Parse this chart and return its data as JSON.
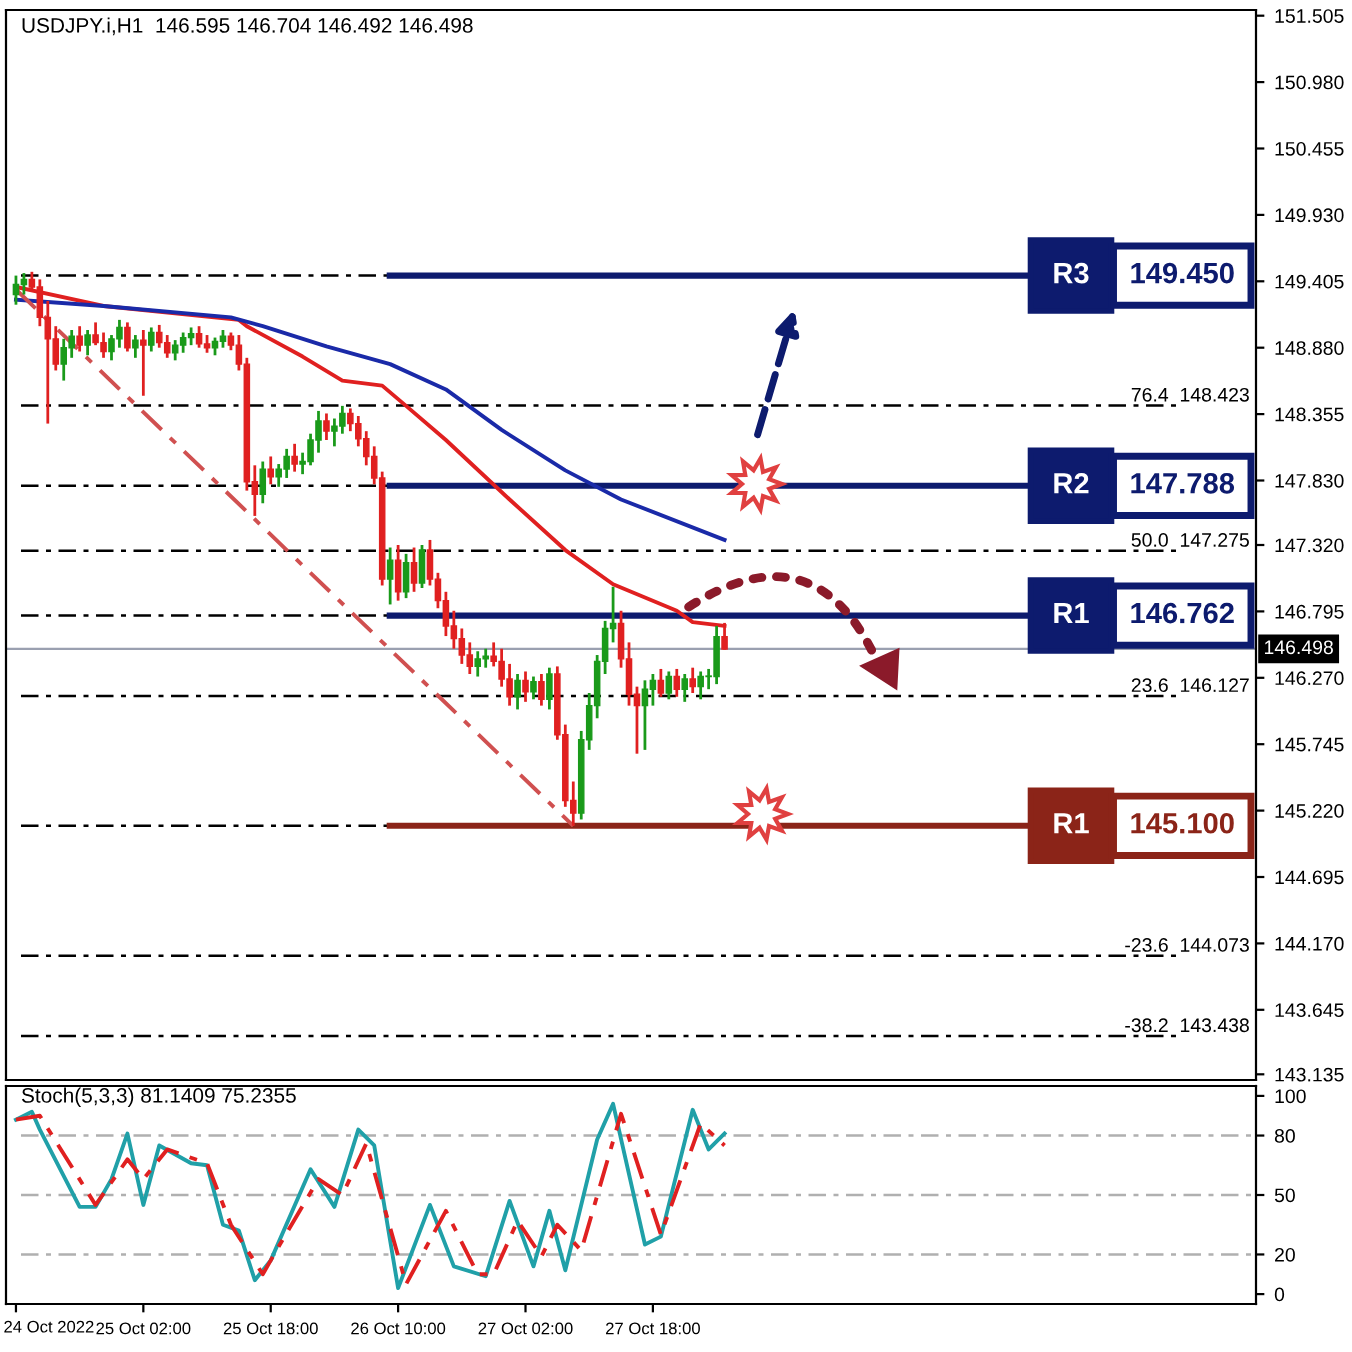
{
  "chart_data": [
    {
      "type": "candlestick",
      "title": "USDJPY.i,H1  146.595 146.704 146.492 146.498",
      "x": [
        "2022-10-24T10:00",
        "2022-10-24T11:00",
        "2022-10-24T12:00",
        "2022-10-24T13:00",
        "2022-10-24T14:00",
        "2022-10-24T15:00",
        "2022-10-24T16:00",
        "2022-10-24T17:00",
        "2022-10-24T18:00",
        "2022-10-24T19:00",
        "2022-10-24T20:00",
        "2022-10-24T21:00",
        "2022-10-24T22:00",
        "2022-10-24T23:00",
        "2022-10-25T00:00",
        "2022-10-25T01:00",
        "2022-10-25T02:00",
        "2022-10-25T03:00",
        "2022-10-25T04:00",
        "2022-10-25T05:00",
        "2022-10-25T06:00",
        "2022-10-25T07:00",
        "2022-10-25T08:00",
        "2022-10-25T09:00",
        "2022-10-25T10:00",
        "2022-10-25T11:00",
        "2022-10-25T12:00",
        "2022-10-25T13:00",
        "2022-10-25T14:00",
        "2022-10-25T15:00",
        "2022-10-25T16:00",
        "2022-10-25T17:00",
        "2022-10-25T18:00",
        "2022-10-25T19:00",
        "2022-10-25T20:00",
        "2022-10-25T21:00",
        "2022-10-25T22:00",
        "2022-10-25T23:00",
        "2022-10-26T00:00",
        "2022-10-26T01:00",
        "2022-10-26T02:00",
        "2022-10-26T03:00",
        "2022-10-26T04:00",
        "2022-10-26T05:00",
        "2022-10-26T06:00",
        "2022-10-26T07:00",
        "2022-10-26T08:00",
        "2022-10-26T09:00",
        "2022-10-26T10:00",
        "2022-10-26T11:00",
        "2022-10-26T12:00",
        "2022-10-26T13:00",
        "2022-10-26T14:00",
        "2022-10-26T15:00",
        "2022-10-26T16:00",
        "2022-10-26T17:00",
        "2022-10-26T18:00",
        "2022-10-26T19:00",
        "2022-10-26T20:00",
        "2022-10-26T21:00",
        "2022-10-26T22:00",
        "2022-10-26T23:00",
        "2022-10-27T00:00",
        "2022-10-27T01:00",
        "2022-10-27T02:00",
        "2022-10-27T03:00",
        "2022-10-27T04:00",
        "2022-10-27T05:00",
        "2022-10-27T06:00",
        "2022-10-27T07:00",
        "2022-10-27T08:00",
        "2022-10-27T09:00",
        "2022-10-27T10:00",
        "2022-10-27T11:00",
        "2022-10-27T12:00",
        "2022-10-27T13:00",
        "2022-10-27T14:00",
        "2022-10-27T15:00",
        "2022-10-27T16:00",
        "2022-10-27T17:00",
        "2022-10-27T18:00",
        "2022-10-27T19:00",
        "2022-10-27T20:00",
        "2022-10-27T21:00",
        "2022-10-27T22:00",
        "2022-10-27T23:00",
        "2022-10-28T00:00",
        "2022-10-28T01:00",
        "2022-10-28T02:00",
        "2022-10-28T03:00"
      ],
      "ohlc": [
        [
          149.3,
          149.45,
          149.22,
          149.38
        ],
        [
          149.38,
          149.47,
          149.3,
          149.42
        ],
        [
          149.42,
          149.48,
          149.33,
          149.36
        ],
        [
          149.36,
          149.42,
          149.05,
          149.12
        ],
        [
          149.12,
          149.25,
          148.28,
          148.95
        ],
        [
          148.95,
          149.05,
          148.7,
          148.75
        ],
        [
          148.75,
          148.95,
          148.62,
          148.88
        ],
        [
          148.88,
          149.02,
          148.8,
          148.97
        ],
        [
          148.97,
          149.05,
          148.85,
          148.9
        ],
        [
          148.9,
          149.02,
          148.82,
          148.98
        ],
        [
          148.98,
          149.08,
          148.9,
          148.92
        ],
        [
          148.92,
          149.0,
          148.8,
          148.85
        ],
        [
          148.85,
          148.98,
          148.78,
          148.95
        ],
        [
          148.95,
          149.1,
          148.88,
          149.04
        ],
        [
          149.04,
          149.08,
          148.85,
          148.88
        ],
        [
          148.88,
          148.98,
          148.8,
          148.94
        ],
        [
          148.94,
          149.02,
          148.5,
          148.9
        ],
        [
          148.9,
          149.04,
          148.85,
          149.0
        ],
        [
          149.0,
          149.06,
          148.88,
          148.92
        ],
        [
          148.92,
          148.98,
          148.8,
          148.84
        ],
        [
          148.84,
          148.94,
          148.78,
          148.9
        ],
        [
          148.9,
          149.0,
          148.84,
          148.96
        ],
        [
          148.96,
          149.04,
          148.9,
          148.99
        ],
        [
          148.99,
          149.05,
          148.88,
          148.91
        ],
        [
          148.91,
          148.98,
          148.84,
          148.88
        ],
        [
          148.88,
          148.96,
          148.82,
          148.93
        ],
        [
          148.93,
          149.02,
          148.88,
          148.97
        ],
        [
          148.97,
          149.0,
          148.86,
          148.9
        ],
        [
          148.9,
          148.98,
          148.7,
          148.75
        ],
        [
          148.75,
          148.8,
          147.75,
          147.82
        ],
        [
          147.82,
          147.95,
          147.55,
          147.72
        ],
        [
          147.72,
          147.98,
          147.65,
          147.92
        ],
        [
          147.92,
          148.02,
          147.8,
          147.86
        ],
        [
          147.86,
          147.96,
          147.78,
          147.92
        ],
        [
          147.92,
          148.08,
          147.85,
          148.02
        ],
        [
          148.02,
          148.12,
          147.9,
          147.96
        ],
        [
          147.96,
          148.05,
          147.88,
          147.98
        ],
        [
          147.98,
          148.2,
          147.95,
          148.15
        ],
        [
          148.15,
          148.38,
          148.05,
          148.3
        ],
        [
          148.3,
          148.36,
          148.15,
          148.22
        ],
        [
          148.22,
          148.32,
          148.1,
          148.26
        ],
        [
          148.26,
          148.42,
          148.2,
          148.36
        ],
        [
          148.36,
          148.4,
          148.22,
          148.28
        ],
        [
          148.28,
          148.34,
          148.1,
          148.16
        ],
        [
          148.16,
          148.22,
          147.95,
          148.02
        ],
        [
          148.02,
          148.1,
          147.8,
          147.85
        ],
        [
          147.85,
          147.9,
          147.0,
          147.05
        ],
        [
          147.05,
          147.3,
          146.85,
          147.2
        ],
        [
          147.2,
          147.32,
          146.88,
          146.95
        ],
        [
          146.95,
          147.25,
          146.9,
          147.18
        ],
        [
          147.18,
          147.3,
          146.95,
          147.02
        ],
        [
          147.02,
          147.32,
          146.98,
          147.28
        ],
        [
          147.28,
          147.36,
          147.0,
          147.05
        ],
        [
          147.05,
          147.1,
          146.82,
          146.88
        ],
        [
          146.88,
          146.95,
          146.6,
          146.68
        ],
        [
          146.68,
          146.8,
          146.5,
          146.58
        ],
        [
          146.58,
          146.66,
          146.38,
          146.45
        ],
        [
          146.45,
          146.55,
          146.3,
          146.36
        ],
        [
          146.36,
          146.48,
          146.28,
          146.42
        ],
        [
          146.42,
          146.5,
          146.35,
          146.44
        ],
        [
          146.44,
          146.55,
          146.36,
          146.4
        ],
        [
          146.4,
          146.5,
          146.2,
          146.26
        ],
        [
          146.26,
          146.38,
          146.05,
          146.12
        ],
        [
          146.12,
          146.3,
          146.02,
          146.25
        ],
        [
          146.25,
          146.32,
          146.08,
          146.16
        ],
        [
          146.16,
          146.28,
          146.1,
          146.24
        ],
        [
          146.24,
          146.3,
          146.05,
          146.1
        ],
        [
          146.1,
          146.35,
          146.02,
          146.3
        ],
        [
          146.3,
          146.36,
          145.78,
          145.82
        ],
        [
          145.82,
          145.9,
          145.25,
          145.3
        ],
        [
          145.3,
          145.45,
          145.1,
          145.2
        ],
        [
          145.2,
          145.85,
          145.15,
          145.78
        ],
        [
          145.78,
          146.15,
          145.7,
          146.05
        ],
        [
          146.05,
          146.45,
          145.95,
          146.4
        ],
        [
          146.4,
          146.72,
          146.3,
          146.66
        ],
        [
          146.66,
          146.99,
          146.55,
          146.7
        ],
        [
          146.7,
          146.8,
          146.35,
          146.42
        ],
        [
          146.42,
          146.55,
          146.05,
          146.14
        ],
        [
          146.14,
          146.2,
          145.67,
          146.05
        ],
        [
          146.05,
          146.25,
          145.7,
          146.18
        ],
        [
          146.18,
          146.3,
          146.05,
          146.25
        ],
        [
          146.25,
          146.34,
          146.12,
          146.15
        ],
        [
          146.15,
          146.32,
          146.1,
          146.28
        ],
        [
          146.28,
          146.34,
          146.12,
          146.18
        ],
        [
          146.18,
          146.3,
          146.08,
          146.26
        ],
        [
          146.26,
          146.35,
          146.15,
          146.2
        ],
        [
          146.2,
          146.32,
          146.1,
          146.28
        ],
        [
          146.28,
          146.34,
          146.18,
          146.28
        ],
        [
          146.28,
          146.68,
          146.22,
          146.595
        ],
        [
          146.595,
          146.704,
          146.492,
          146.498
        ]
      ],
      "series": [
        {
          "type": "line",
          "color": "#e02020",
          "x": [
            "2022-10-24T10:00",
            "2022-10-24T21:00",
            "2022-10-25T14:00",
            "2022-10-25T15:00",
            "2022-10-25T22:00",
            "2022-10-26T03:00",
            "2022-10-26T08:00",
            "2022-10-26T11:00",
            "2022-10-26T16:00",
            "2022-10-27T00:00",
            "2022-10-27T07:00",
            "2022-10-27T13:00",
            "2022-10-27T21:00",
            "2022-10-27T23:00",
            "2022-10-28T03:00"
          ],
          "values": [
            149.36,
            149.21,
            149.1,
            149.05,
            148.81,
            148.62,
            148.58,
            148.42,
            148.15,
            147.68,
            147.28,
            147.01,
            146.8,
            146.71,
            146.68
          ]
        },
        {
          "type": "line",
          "color": "#1a2aa8",
          "x": [
            "2022-10-24T10:00",
            "2022-10-24T21:00",
            "2022-10-25T13:00",
            "2022-10-25T17:00",
            "2022-10-26T01:00",
            "2022-10-26T09:00",
            "2022-10-26T16:00",
            "2022-10-26T23:00",
            "2022-10-27T07:00",
            "2022-10-27T14:00",
            "2022-10-28T03:00"
          ],
          "values": [
            149.26,
            149.21,
            149.12,
            149.05,
            148.89,
            148.75,
            148.55,
            148.23,
            147.91,
            147.68,
            147.36
          ]
        },
        {
          "type": "line",
          "color": "#d05050",
          "line_style": "dashed",
          "x": [
            "2022-10-24T10:00",
            "2022-10-27T08:00"
          ],
          "values": [
            149.34,
            145.1
          ]
        }
      ],
      "xlim": [
        "2022-10-24T08:45",
        "2022-10-30T21:45"
      ],
      "ylim": [
        143.09,
        151.55
      ],
      "yticks": [
        {
          "value": 151.505,
          "label": "151.505"
        },
        {
          "value": 150.98,
          "label": "150.980"
        },
        {
          "value": 150.455,
          "label": "150.455"
        },
        {
          "value": 149.93,
          "label": "149.930"
        },
        {
          "value": 149.405,
          "label": "149.405"
        },
        {
          "value": 148.88,
          "label": "148.880"
        },
        {
          "value": 148.355,
          "label": "148.355"
        },
        {
          "value": 147.83,
          "label": "147.830"
        },
        {
          "value": 147.32,
          "label": "147.320"
        },
        {
          "value": 146.795,
          "label": "146.795"
        },
        {
          "value": 146.27,
          "label": "146.270"
        },
        {
          "value": 145.745,
          "label": "145.745"
        },
        {
          "value": 145.22,
          "label": "145.220"
        },
        {
          "value": 144.695,
          "label": "144.695"
        },
        {
          "value": 144.17,
          "label": "144.170"
        },
        {
          "value": 143.645,
          "label": "143.645"
        },
        {
          "value": 143.135,
          "label": "143.135"
        }
      ],
      "ref_lines": [
        {
          "axis": "y",
          "value": 149.45,
          "label": null,
          "color": "#000000",
          "line_style": "dashed"
        },
        {
          "axis": "y",
          "value": 147.788,
          "label": null,
          "color": "#000000",
          "line_style": "dashed"
        },
        {
          "axis": "y",
          "value": 146.762,
          "label": null,
          "color": "#000000",
          "line_style": "dashed"
        },
        {
          "axis": "y",
          "value": 145.1,
          "label": null,
          "color": "#000000",
          "line_style": "dashed"
        },
        {
          "axis": "y",
          "value": 148.423,
          "label": "76.4  148.423",
          "color": "#000000",
          "line_style": "dashed"
        },
        {
          "axis": "y",
          "value": 147.275,
          "label": "50.0  147.275",
          "color": "#000000",
          "line_style": "dashed"
        },
        {
          "axis": "y",
          "value": 146.127,
          "label": "23.6  146.127",
          "color": "#000000",
          "line_style": "dashed"
        },
        {
          "axis": "y",
          "value": 144.073,
          "label": "-23.6  144.073",
          "color": "#000000",
          "line_style": "dashed"
        },
        {
          "axis": "y",
          "value": 143.438,
          "label": "-38.2  143.438",
          "color": "#000000",
          "line_style": "dashed"
        },
        {
          "axis": "y",
          "value": 146.498,
          "label": "146.498",
          "color": "#9aa0b0",
          "line_style": "solid"
        },
        {
          "axis": "y",
          "value": 149.45,
          "label": "R3  149.450",
          "color": "#0d1b6e",
          "line_style": "solid"
        },
        {
          "axis": "y",
          "value": 147.788,
          "label": "R2  147.788",
          "color": "#0d1b6e",
          "line_style": "solid"
        },
        {
          "axis": "y",
          "value": 146.762,
          "label": "R1  146.762",
          "color": "#0d1b6e",
          "line_style": "solid"
        },
        {
          "axis": "y",
          "value": 145.1,
          "label": "R1  145.100",
          "color": "#8b2418",
          "line_style": "solid"
        }
      ],
      "tick_labels": "y"
    },
    {
      "type": "line",
      "title": "Stoch(5,3,3) 81.1409 75.2355",
      "series": [
        {
          "color": "#20a0a8",
          "x": [
            "2022-10-24T10:00",
            "2022-10-24T12:00",
            "2022-10-24T13:00",
            "2022-10-24T18:00",
            "2022-10-24T20:00",
            "2022-10-24T22:00",
            "2022-10-25T00:00",
            "2022-10-25T02:00",
            "2022-10-25T04:00",
            "2022-10-25T08:00",
            "2022-10-25T10:00",
            "2022-10-25T12:00",
            "2022-10-25T14:00",
            "2022-10-25T16:00",
            "2022-10-25T18:00",
            "2022-10-25T23:00",
            "2022-10-26T02:00",
            "2022-10-26T05:00",
            "2022-10-26T07:00",
            "2022-10-26T10:00",
            "2022-10-26T14:00",
            "2022-10-26T17:00",
            "2022-10-26T21:00",
            "2022-10-27T00:00",
            "2022-10-27T03:00",
            "2022-10-27T05:00",
            "2022-10-27T07:00",
            "2022-10-27T11:00",
            "2022-10-27T13:00",
            "2022-10-27T17:00",
            "2022-10-27T19:00",
            "2022-10-27T23:00",
            "2022-10-28T01:00",
            "2022-10-28T03:00"
          ],
          "values": [
            88,
            92,
            83,
            44,
            44,
            58,
            81,
            45,
            75,
            66,
            65,
            35,
            32,
            7,
            17,
            63,
            44,
            83,
            75,
            3,
            45,
            14,
            9,
            47,
            14,
            42,
            12,
            78,
            96,
            25,
            29,
            93,
            73,
            81
          ]
        },
        {
          "color": "#e02020",
          "line_style": "dashed",
          "x": [
            "2022-10-24T10:00",
            "2022-10-24T13:00",
            "2022-10-24T20:00",
            "2022-10-25T00:00",
            "2022-10-25T02:00",
            "2022-10-25T05:00",
            "2022-10-25T10:00",
            "2022-10-25T13:00",
            "2022-10-25T17:00",
            "2022-10-25T19:00",
            "2022-10-26T00:00",
            "2022-10-26T03:00",
            "2022-10-26T06:00",
            "2022-10-26T11:00",
            "2022-10-26T16:00",
            "2022-10-26T20:00",
            "2022-10-26T22:00",
            "2022-10-27T01:00",
            "2022-10-27T04:00",
            "2022-10-27T06:00",
            "2022-10-27T09:00",
            "2022-10-27T14:00",
            "2022-10-27T19:00",
            "2022-10-28T00:00",
            "2022-10-28T03:00"
          ],
          "values": [
            88,
            90,
            45,
            68,
            58,
            73,
            66,
            35,
            10,
            24,
            58,
            50,
            76,
            5,
            42,
            10,
            10,
            37,
            19,
            35,
            22,
            91,
            30,
            86,
            75
          ]
        }
      ],
      "xlim": [
        "2022-10-24T08:45",
        "2022-10-30T21:45"
      ],
      "annotations": [
        "24 Oct 2022"
      ],
      "xticks": [
        {
          "value": "2022-10-24T10:00",
          "label": null
        },
        {
          "value": "2022-10-25T02:00",
          "label": "25 Oct 02:00"
        },
        {
          "value": "2022-10-25T18:00",
          "label": "25 Oct 18:00"
        },
        {
          "value": "2022-10-26T10:00",
          "label": "26 Oct 10:00"
        },
        {
          "value": "2022-10-27T02:00",
          "label": "27 Oct 02:00"
        },
        {
          "value": "2022-10-27T18:00",
          "label": "27 Oct 18:00"
        }
      ],
      "ylim": [
        -5,
        105
      ],
      "yticks": [
        0,
        20,
        50,
        80,
        100
      ],
      "ref_lines": [
        {
          "axis": "y",
          "value": 20,
          "color": "#b0b0b0",
          "line_style": "dashed"
        },
        {
          "axis": "y",
          "value": 50,
          "color": "#b0b0b0",
          "line_style": "dashed"
        },
        {
          "axis": "y",
          "value": 80,
          "color": "#b0b0b0",
          "line_style": "dashed"
        }
      ]
    }
  ]
}
